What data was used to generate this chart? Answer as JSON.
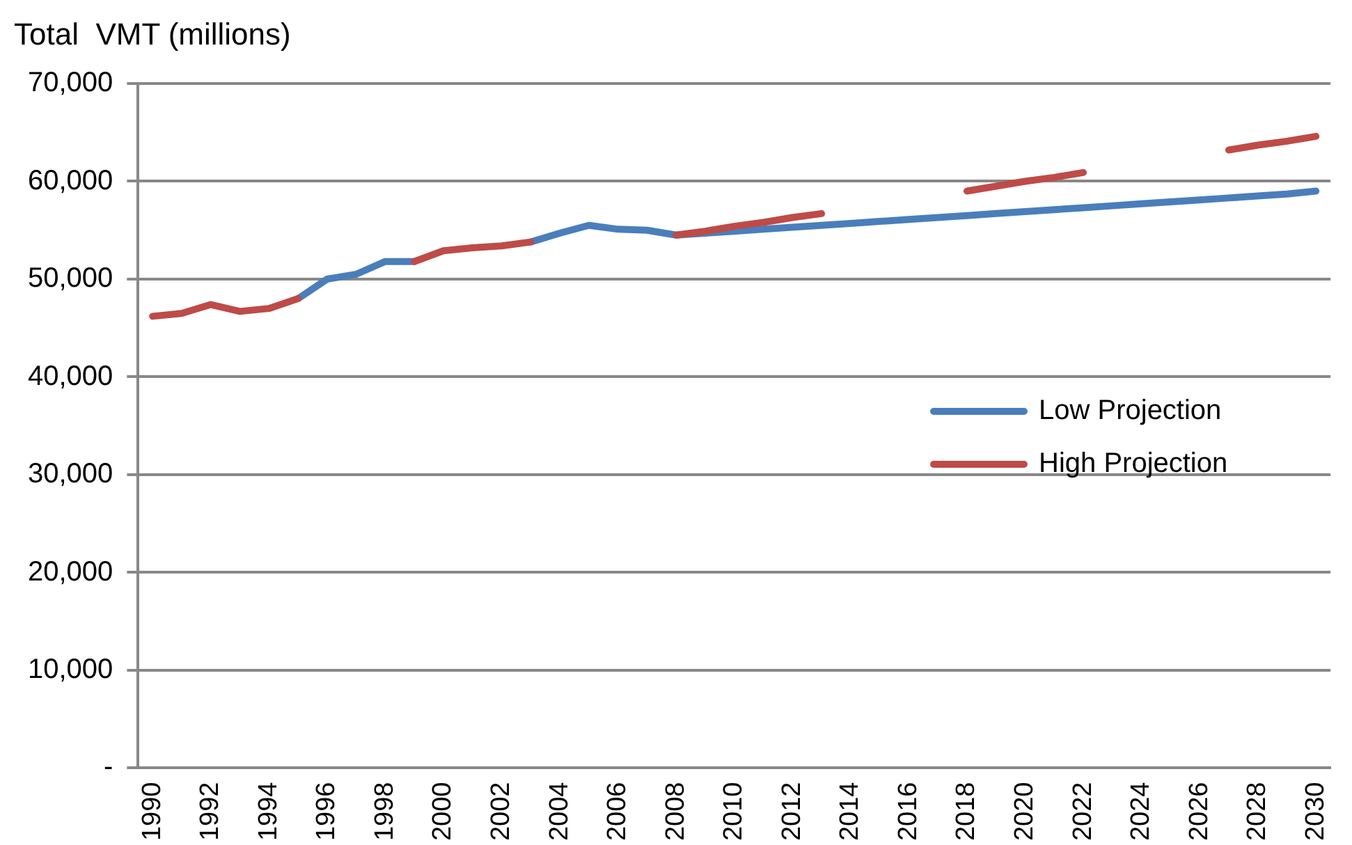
{
  "chart_data": {
    "type": "line",
    "ylabel": "Total  VMT (millions)",
    "categories": [
      "1990",
      null,
      "1992",
      null,
      "1994",
      null,
      "1996",
      null,
      "1998",
      null,
      "2000",
      null,
      "2002",
      null,
      "2004",
      null,
      "2006",
      null,
      "2008",
      null,
      "2010",
      null,
      "2012",
      null,
      "2014",
      null,
      "2016",
      null,
      "2018",
      null,
      "2020",
      null,
      "2022",
      null,
      "2024",
      null,
      "2026",
      null,
      "2028",
      null,
      "2030"
    ],
    "series": [
      {
        "name": "Low Projection",
        "color": "#4a7ebb",
        "line_style": "solid",
        "values": [
          null,
          null,
          null,
          null,
          null,
          48000,
          50000,
          50500,
          51800,
          51800,
          null,
          null,
          null,
          53800,
          54700,
          55500,
          55100,
          55000,
          54500,
          54700,
          54900,
          55100,
          55300,
          55500,
          55700,
          55900,
          56100,
          56300,
          56500,
          56700,
          56900,
          57100,
          57300,
          57500,
          57700,
          57900,
          58100,
          58300,
          58500,
          58700,
          59000
        ]
      },
      {
        "name": "High Projection",
        "color": "#be4b48",
        "values": [
          46200,
          46500,
          47400,
          46700,
          47000,
          48000,
          null,
          null,
          null,
          51800,
          52900,
          53200,
          53400,
          53800,
          null,
          null,
          null,
          null,
          54500,
          54900,
          55400,
          55800,
          56300,
          56700,
          null,
          null,
          null,
          null,
          59000,
          59500,
          60000,
          60400,
          60900,
          null,
          null,
          null,
          null,
          63200,
          63700,
          64100,
          64600
        ]
      }
    ],
    "ylim": [
      0,
      70000
    ],
    "yticks": [
      {
        "value": 0,
        "label": "-"
      },
      {
        "value": 10000,
        "label": "10,000"
      },
      {
        "value": 20000,
        "label": "20,000"
      },
      {
        "value": 30000,
        "label": "30,000"
      },
      {
        "value": 40000,
        "label": "40,000"
      },
      {
        "value": 50000,
        "label": "50,000"
      },
      {
        "value": 60000,
        "label": "60,000"
      },
      {
        "value": 70000,
        "label": "70,000"
      }
    ],
    "grid": "y",
    "legend": "right",
    "marker": "none"
  }
}
